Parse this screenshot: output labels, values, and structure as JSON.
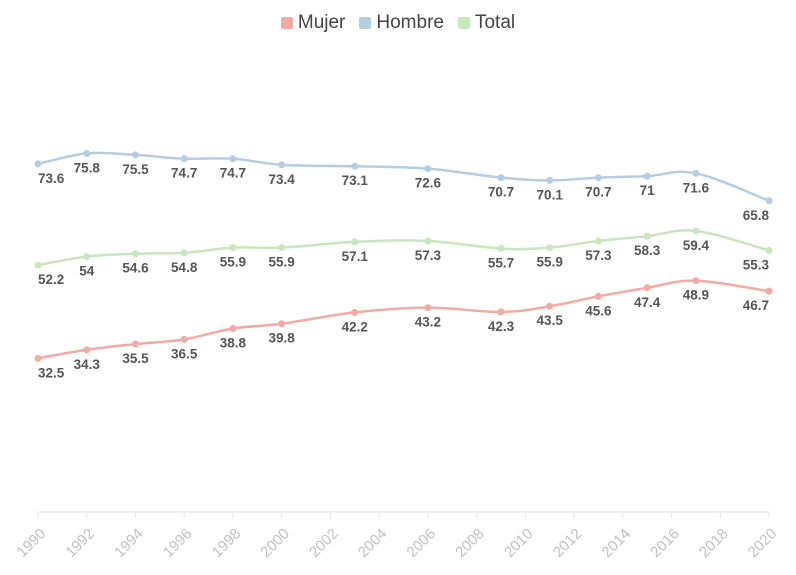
{
  "chart_data": {
    "type": "line",
    "title": "",
    "xlabel": "",
    "ylabel": "",
    "legend_position": "top-center",
    "grid": false,
    "xlim": [
      1990,
      2020
    ],
    "ylim": [
      0,
      100
    ],
    "x_ticks": [
      1990,
      1992,
      1994,
      1996,
      1998,
      2000,
      2002,
      2004,
      2006,
      2008,
      2010,
      2012,
      2014,
      2016,
      2018,
      2020
    ],
    "x_tick_labels": [
      "1990",
      "1992",
      "1994",
      "1996",
      "1998",
      "2000",
      "2002",
      "2004",
      "2006",
      "2008",
      "2010",
      "2012",
      "2014",
      "2016",
      "2018",
      "2020"
    ],
    "x": [
      1990,
      1992,
      1994,
      1996,
      1998,
      2000,
      2003,
      2006,
      2009,
      2011,
      2013,
      2015,
      2017,
      2020
    ],
    "series": [
      {
        "name": "Mujer",
        "color": "#f4aaa4",
        "values": [
          32.5,
          34.3,
          35.5,
          36.5,
          38.8,
          39.8,
          42.2,
          43.2,
          42.3,
          43.5,
          45.6,
          47.4,
          48.9,
          46.7
        ],
        "labels": [
          "32.5",
          "34.3",
          "35.5",
          "36.5",
          "38.8",
          "39.8",
          "42.2",
          "43.2",
          "42.3",
          "43.5",
          "45.6",
          "47.4",
          "48.9",
          "46.7"
        ]
      },
      {
        "name": "Hombre",
        "color": "#b5cde2",
        "values": [
          73.6,
          75.8,
          75.5,
          74.7,
          74.7,
          73.4,
          73.1,
          72.6,
          70.7,
          70.1,
          70.7,
          71,
          71.6,
          65.8
        ],
        "labels": [
          "73.6",
          "75.8",
          "75.5",
          "74.7",
          "74.7",
          "73.4",
          "73.1",
          "72.6",
          "70.7",
          "70.1",
          "70.7",
          "71",
          "71.6",
          "65.8"
        ]
      },
      {
        "name": "Total",
        "color": "#c9e6bd",
        "values": [
          52.2,
          54,
          54.6,
          54.8,
          55.9,
          55.9,
          57.1,
          57.3,
          55.7,
          55.9,
          57.3,
          58.3,
          59.4,
          55.3
        ],
        "labels": [
          "52.2",
          "54",
          "54.6",
          "54.8",
          "55.9",
          "55.9",
          "57.1",
          "57.3",
          "55.7",
          "55.9",
          "57.3",
          "58.3",
          "59.4",
          "55.3"
        ]
      }
    ]
  }
}
